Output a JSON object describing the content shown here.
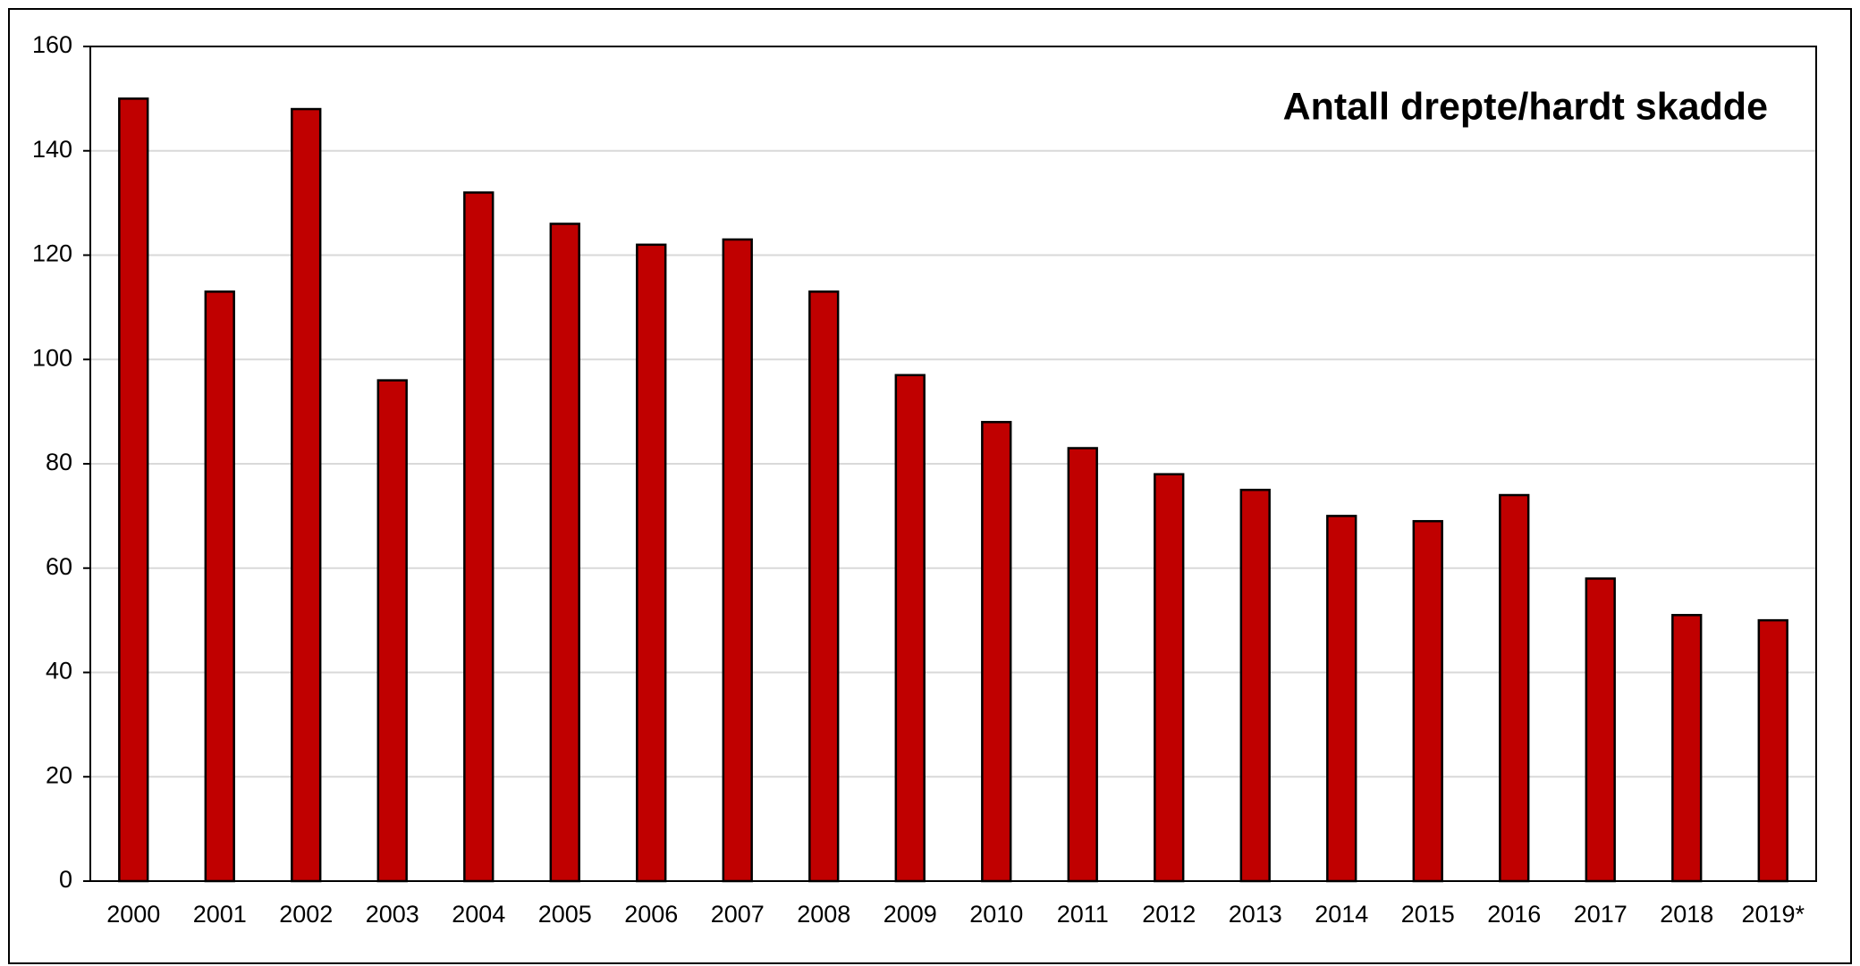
{
  "chart_data": {
    "type": "bar",
    "title": "Antall drepte/hardt skadde",
    "categories": [
      "2000",
      "2001",
      "2002",
      "2003",
      "2004",
      "2005",
      "2006",
      "2007",
      "2008",
      "2009",
      "2010",
      "2011",
      "2012",
      "2013",
      "2014",
      "2015",
      "2016",
      "2017",
      "2018",
      "2019*"
    ],
    "values": [
      150,
      113,
      148,
      96,
      132,
      126,
      122,
      123,
      113,
      97,
      88,
      83,
      78,
      75,
      70,
      69,
      74,
      58,
      51,
      50
    ],
    "color": "#c00000",
    "ylim": [
      0,
      160
    ],
    "yticks": [
      0,
      20,
      40,
      60,
      80,
      100,
      120,
      140,
      160
    ],
    "grid": true
  }
}
